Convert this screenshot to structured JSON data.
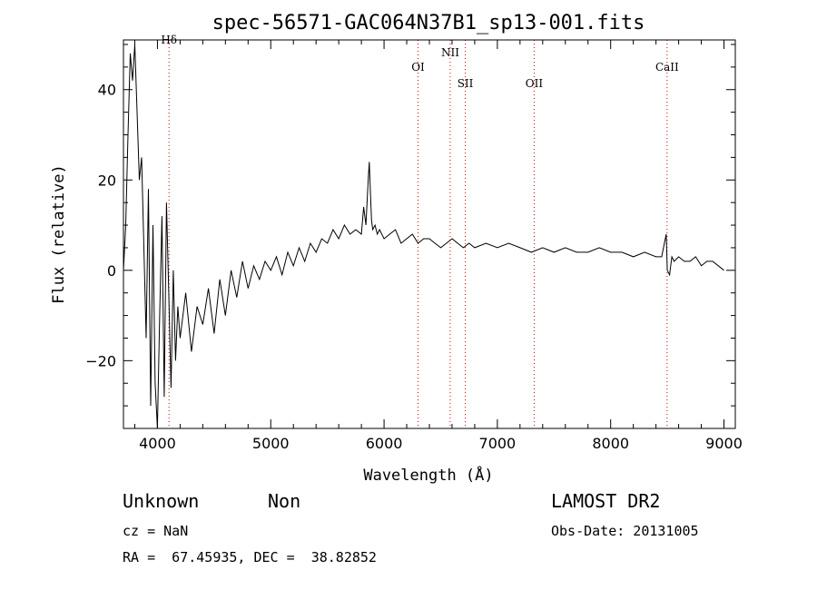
{
  "chart_data": {
    "type": "line",
    "title": "spec-56571-GAC064N37B1_sp13-001.fits",
    "xlabel": "Wavelength (Å)",
    "ylabel": "Flux (relative)",
    "xlim": [
      3700,
      9100
    ],
    "ylim": [
      -35,
      51
    ],
    "x_ticks": [
      4000,
      5000,
      6000,
      7000,
      8000,
      9000
    ],
    "y_ticks": [
      -20,
      0,
      20,
      40
    ],
    "grid": false,
    "series": [
      {
        "x": [
          3700,
          3720,
          3740,
          3760,
          3780,
          3800,
          3820,
          3840,
          3860,
          3880,
          3900,
          3920,
          3940,
          3960,
          3980,
          4000,
          4020,
          4040,
          4060,
          4080,
          4100,
          4120,
          4140,
          4160,
          4180,
          4200,
          4250,
          4300,
          4350,
          4400,
          4450,
          4500,
          4550,
          4600,
          4650,
          4700,
          4750,
          4800,
          4850,
          4900,
          4950,
          5000,
          5050,
          5100,
          5150,
          5200,
          5250,
          5300,
          5350,
          5400,
          5450,
          5500,
          5550,
          5600,
          5650,
          5700,
          5750,
          5800,
          5820,
          5840,
          5860,
          5870,
          5880,
          5890,
          5900,
          5920,
          5940,
          5960,
          6000,
          6050,
          6100,
          6150,
          6200,
          6250,
          6300,
          6350,
          6400,
          6450,
          6500,
          6550,
          6600,
          6650,
          6700,
          6750,
          6800,
          6900,
          7000,
          7100,
          7200,
          7300,
          7400,
          7500,
          7600,
          7700,
          7800,
          7900,
          8000,
          8100,
          8200,
          8300,
          8400,
          8450,
          8490,
          8500,
          8520,
          8540,
          8560,
          8600,
          8650,
          8700,
          8750,
          8800,
          8850,
          8900,
          8950,
          9000
        ],
        "y": [
          0,
          10,
          30,
          48,
          42,
          50,
          35,
          20,
          25,
          5,
          -15,
          18,
          -30,
          10,
          -25,
          -35,
          -10,
          12,
          -28,
          15,
          -5,
          -26,
          0,
          -20,
          -8,
          -15,
          -5,
          -18,
          -8,
          -12,
          -4,
          -14,
          -2,
          -10,
          0,
          -6,
          2,
          -4,
          1,
          -2,
          2,
          0,
          3,
          -1,
          4,
          1,
          5,
          2,
          6,
          4,
          7,
          6,
          9,
          7,
          10,
          8,
          9,
          8,
          14,
          10,
          20,
          24,
          17,
          11,
          9,
          10,
          8,
          9,
          7,
          8,
          9,
          6,
          7,
          8,
          6,
          7,
          7,
          6,
          5,
          6,
          7,
          6,
          5,
          6,
          5,
          6,
          5,
          6,
          5,
          4,
          5,
          4,
          5,
          4,
          4,
          5,
          4,
          4,
          3,
          4,
          3,
          3,
          8,
          0,
          -1,
          3,
          2,
          3,
          2,
          2,
          3,
          1,
          2,
          2,
          1,
          0
        ]
      }
    ],
    "line_markers": [
      {
        "label": "Hδ",
        "x": 4102
      },
      {
        "label": "OI",
        "x": 6300
      },
      {
        "label": "NII",
        "x": 6584
      },
      {
        "label": "SII",
        "x": 6717
      },
      {
        "label": "OII",
        "x": 7325
      },
      {
        "label": "CaII",
        "x": 8498
      }
    ],
    "marker_color": "#cc0000"
  },
  "info": {
    "class": "Unknown",
    "subclass": "Non",
    "survey": "LAMOST DR2",
    "cz": "cz = NaN",
    "obs_date": "Obs-Date: 20131005",
    "coords": "RA =  67.45935, DEC =  38.82852"
  }
}
